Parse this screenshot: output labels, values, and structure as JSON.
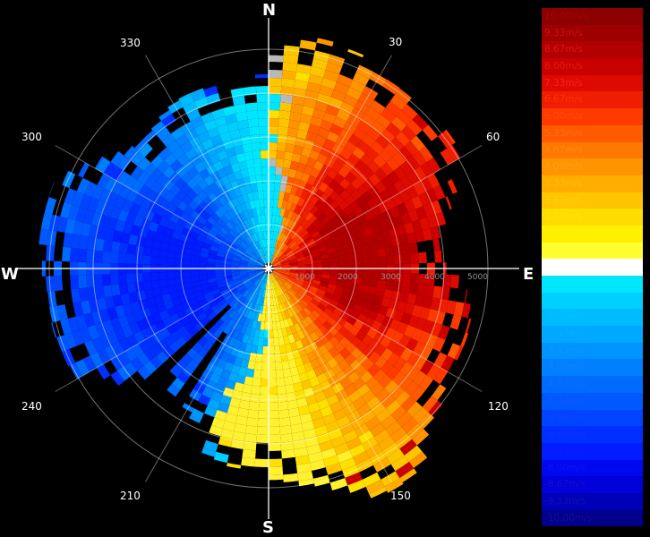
{
  "compass": {
    "n": "N",
    "e": "E",
    "s": "S",
    "w": "W"
  },
  "bearings": [
    "30",
    "60",
    "120",
    "150",
    "210",
    "240",
    "300",
    "330"
  ],
  "range_labels": [
    "1000",
    "2000",
    "3000",
    "4000",
    "5000"
  ],
  "legend": [
    {
      "label": "10.00m/s",
      "color": "#8b0000",
      "text_color": "#b00000"
    },
    {
      "label": "9.33m/s",
      "color": "#9e0000",
      "text_color": "#cc1010"
    },
    {
      "label": "8.67m/s",
      "color": "#b20000",
      "text_color": "#d81818"
    },
    {
      "label": "8.00m/s",
      "color": "#c80000",
      "text_color": "#e81818"
    },
    {
      "label": "7.33m/s",
      "color": "#dc0a00",
      "text_color": "#ff2020"
    },
    {
      "label": "6.67m/s",
      "color": "#f01e00",
      "text_color": "#ff3010"
    },
    {
      "label": "6.00m/s",
      "color": "#ff3a00",
      "text_color": "#ff4a10"
    },
    {
      "label": "5.33m/s",
      "color": "#ff5a00",
      "text_color": "#ff6a10"
    },
    {
      "label": "4.67m/s",
      "color": "#ff7800",
      "text_color": "#ff8810"
    },
    {
      "label": "4.00m/s",
      "color": "#ff9400",
      "text_color": "#ffa010"
    },
    {
      "label": "3.33m/s",
      "color": "#ffae00",
      "text_color": "#ffb810"
    },
    {
      "label": "2.67m/s",
      "color": "#ffc600",
      "text_color": "#ffcc10"
    },
    {
      "label": "2.00m/s",
      "color": "#ffdc00",
      "text_color": "#ffe010"
    },
    {
      "label": "1.33m/s",
      "color": "#fff000",
      "text_color": "#fff010"
    },
    {
      "label": "0.67m/s",
      "color": "#ffff30",
      "text_color": "#ffff30"
    },
    {
      "label": "0.00m/s",
      "color": "#ffffff",
      "text_color": "#ffffff"
    },
    {
      "label": "-0.67m/s",
      "color": "#00e6ff",
      "text_color": "#00e6ff"
    },
    {
      "label": "-1.33m/s",
      "color": "#00d0ff",
      "text_color": "#00d0ff"
    },
    {
      "label": "-2.00m/s",
      "color": "#00bcff",
      "text_color": "#00c0ff"
    },
    {
      "label": "-2.67m/s",
      "color": "#00a8ff",
      "text_color": "#10aaff"
    },
    {
      "label": "-3.33m/s",
      "color": "#0094ff",
      "text_color": "#1094ff"
    },
    {
      "label": "-4.00m/s",
      "color": "#0080ff",
      "text_color": "#1080ff"
    },
    {
      "label": "-4.67m/s",
      "color": "#006cff",
      "text_color": "#106cff"
    },
    {
      "label": "-5.33m/s",
      "color": "#0058ff",
      "text_color": "#1058ff"
    },
    {
      "label": "-6.00m/s",
      "color": "#0044ff",
      "text_color": "#1044ff"
    },
    {
      "label": "-6.67m/s",
      "color": "#0030ff",
      "text_color": "#1030ff"
    },
    {
      "label": "-7.33m/s",
      "color": "#001cff",
      "text_color": "#101cff"
    },
    {
      "label": "-8.00m/s",
      "color": "#0008f0",
      "text_color": "#1010f0"
    },
    {
      "label": "-8.67m/s",
      "color": "#0000d8",
      "text_color": "#1010d0"
    },
    {
      "label": "-9.33m/s",
      "color": "#0000b8",
      "text_color": "#1010b0"
    },
    {
      "label": "-10.00m/s",
      "color": "#00008c",
      "text_color": "#101098"
    }
  ]
}
